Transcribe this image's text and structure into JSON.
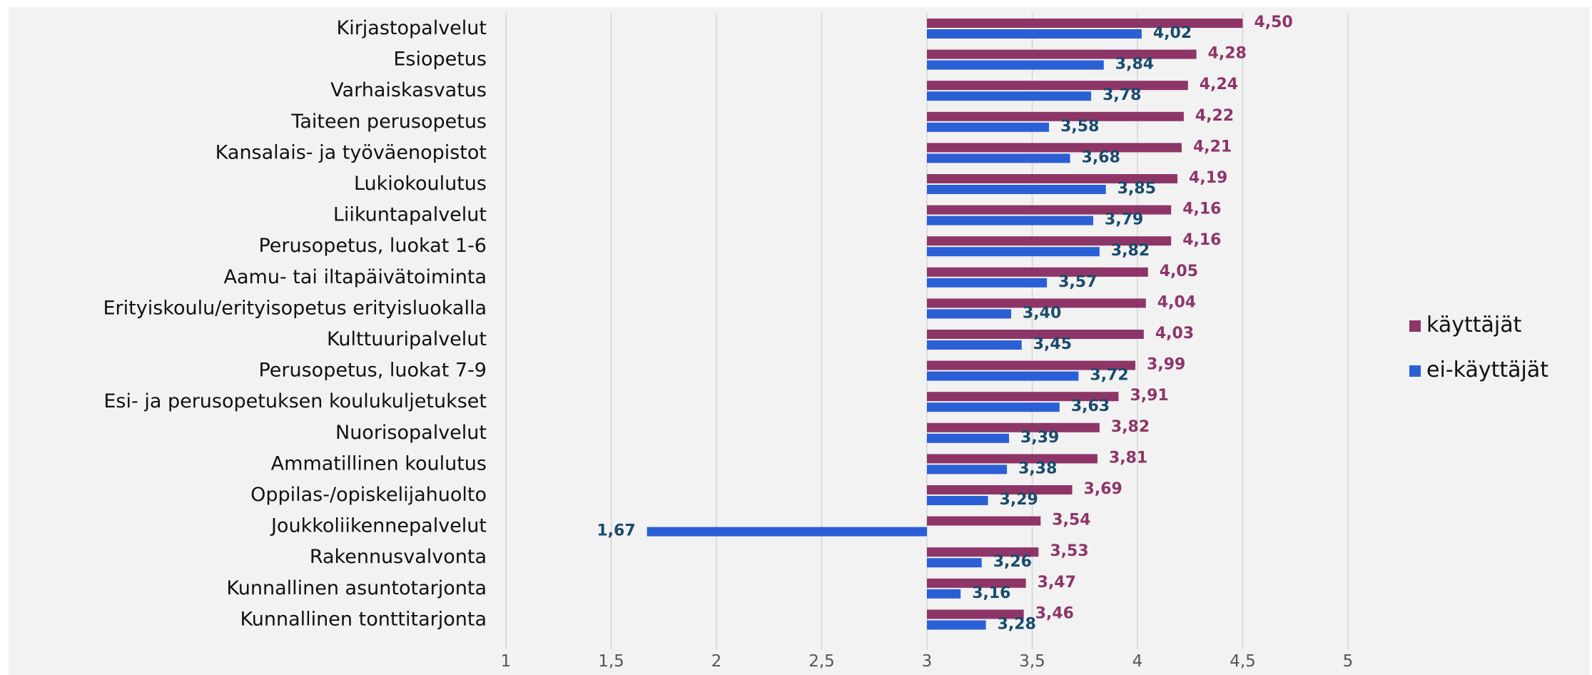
{
  "chart_data": {
    "type": "bar",
    "orientation": "horizontal",
    "categories": [
      "Kirjastopalvelut",
      "Esiopetus",
      "Varhaiskasvatus",
      "Taiteen perusopetus",
      "Kansalais- ja työväenopistot",
      "Lukiokoulutus",
      "Liikuntapalvelut",
      "Perusopetus, luokat 1-6",
      "Aamu- tai iltapäivätoiminta",
      "Erityiskoulu/erityisopetus erityisluokalla",
      "Kulttuuripalvelut",
      "Perusopetus, luokat 7-9",
      "Esi- ja perusopetuksen koulukuljetukset",
      "Nuorisopalvelut",
      "Ammatillinen koulutus",
      "Oppilas-/opiskelijahuolto",
      "Joukkoliikennepalvelut",
      "Rakennusvalvonta",
      "Kunnallinen asuntotarjonta",
      "Kunnallinen tonttitarjonta"
    ],
    "series": [
      {
        "name": "käyttäjät",
        "color": "#8e3568",
        "label_color": "#8e3568",
        "values": [
          4.5,
          4.28,
          4.24,
          4.22,
          4.21,
          4.19,
          4.16,
          4.16,
          4.05,
          4.04,
          4.03,
          3.99,
          3.91,
          3.82,
          3.81,
          3.69,
          3.54,
          3.53,
          3.47,
          3.46
        ],
        "labels": [
          "4,50",
          "4,28",
          "4,24",
          "4,22",
          "4,21",
          "4,19",
          "4,16",
          "4,16",
          "4,05",
          "4,04",
          "4,03",
          "3,99",
          "3,91",
          "3,82",
          "3,81",
          "3,69",
          "3,54",
          "3,53",
          "3,47",
          "3,46"
        ]
      },
      {
        "name": "ei-käyttäjät",
        "color": "#2b5fd6",
        "label_color": "#1a4a6e",
        "values": [
          4.02,
          3.84,
          3.78,
          3.58,
          3.68,
          3.85,
          3.79,
          3.82,
          3.57,
          3.4,
          3.45,
          3.72,
          3.63,
          3.39,
          3.38,
          3.29,
          1.67,
          3.26,
          3.16,
          3.28
        ],
        "labels": [
          "4,02",
          "3,84",
          "3,78",
          "3,58",
          "3,68",
          "3,85",
          "3,79",
          "3,82",
          "3,57",
          "3,40",
          "3,45",
          "3,72",
          "3,63",
          "3,39",
          "3,38",
          "3,29",
          "1,67",
          "3,26",
          "3,16",
          "3,28"
        ]
      }
    ],
    "xlim": [
      1,
      5
    ],
    "baseline": 3,
    "x_ticks": [
      1,
      1.5,
      2,
      2.5,
      3,
      3.5,
      4,
      4.5,
      5
    ],
    "x_tick_labels": [
      "1",
      "1,5",
      "2",
      "2,5",
      "3",
      "3,5",
      "4",
      "4,5",
      "5"
    ],
    "grid": true,
    "legend_position": "right"
  }
}
